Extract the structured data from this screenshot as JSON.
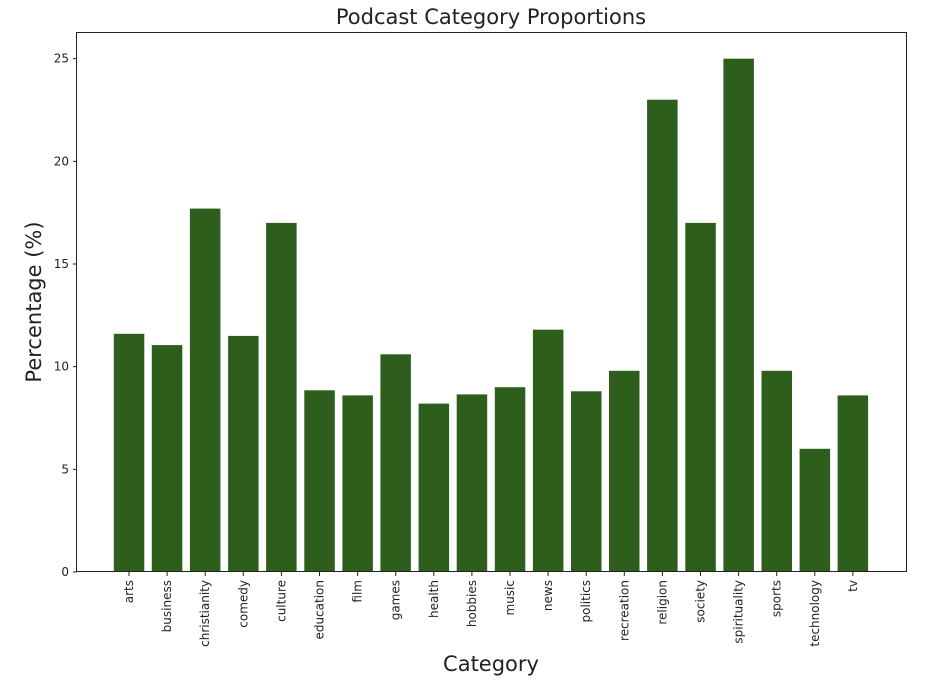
{
  "chart_data": {
    "type": "bar",
    "title": "Podcast Category Proportions",
    "xlabel": "Category",
    "ylabel": "Percentage (%)",
    "categories": [
      "arts",
      "business",
      "christianity",
      "comedy",
      "culture",
      "education",
      "film",
      "games",
      "health",
      "hobbies",
      "music",
      "news",
      "politics",
      "recreation",
      "religion",
      "society",
      "spirituality",
      "sports",
      "technology",
      "tv"
    ],
    "values": [
      11.6,
      11.05,
      17.7,
      11.5,
      17.0,
      8.85,
      8.6,
      10.6,
      8.2,
      8.65,
      9.0,
      11.8,
      8.8,
      9.8,
      23.0,
      17.0,
      25.0,
      9.8,
      6.0,
      8.6
    ],
    "yticks": [
      0,
      5,
      10,
      15,
      20,
      25
    ],
    "ylim": [
      0,
      26.25
    ],
    "bar_color": "#2d5e1b",
    "grid": false,
    "legend": "none"
  }
}
